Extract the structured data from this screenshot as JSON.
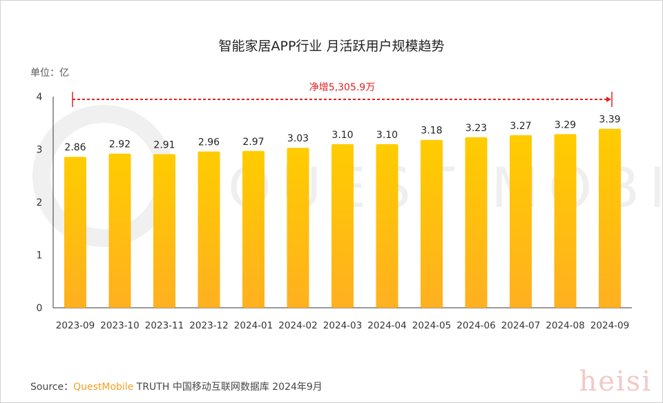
{
  "chart_data": {
    "type": "bar",
    "title": "智能家居APP行业 月活跃用户规模趋势",
    "unit_label": "单位：亿",
    "categories": [
      "2023-09",
      "2023-10",
      "2023-11",
      "2023-12",
      "2024-01",
      "2024-02",
      "2024-03",
      "2024-04",
      "2024-05",
      "2024-06",
      "2024-07",
      "2024-08",
      "2024-09"
    ],
    "values": [
      2.86,
      2.92,
      2.91,
      2.96,
      2.97,
      3.03,
      3.1,
      3.1,
      3.18,
      3.23,
      3.27,
      3.29,
      3.39
    ],
    "value_labels": [
      "2.86",
      "2.92",
      "2.91",
      "2.96",
      "2.97",
      "3.03",
      "3.10",
      "3.10",
      "3.18",
      "3.23",
      "3.27",
      "3.29",
      "3.39"
    ],
    "yticks": [
      "0",
      "1",
      "2",
      "3",
      "4"
    ],
    "ylim": [
      0,
      4
    ],
    "grid": false,
    "bar_color_top": "#ffcc00",
    "bar_color_bottom": "#ffb020",
    "annotation": {
      "text": "净增5,305.9万",
      "color": "#e02020",
      "from": "2023-09",
      "to": "2024-09"
    }
  },
  "source": {
    "prefix": "Source：",
    "brand": "QuestMobile",
    "rest": " TRUTH 中国移动互联网数据库 2024年9月"
  },
  "watermark": {
    "brand": "QUEST MOBILE",
    "overlay": "heisi"
  }
}
